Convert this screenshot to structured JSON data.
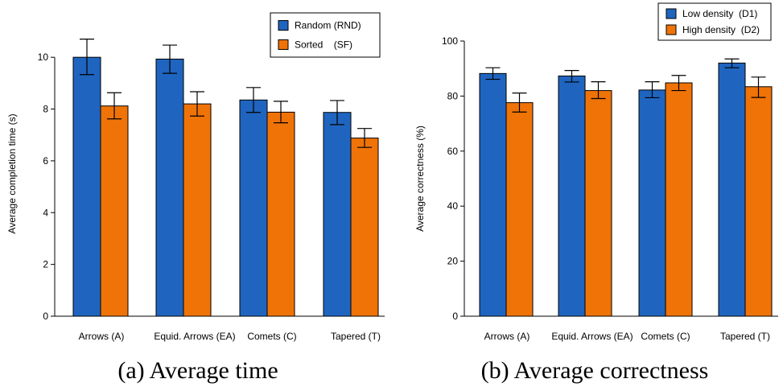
{
  "chart_data": [
    {
      "type": "bar",
      "caption": "(a)  Average time",
      "ylabel": "Average completion time (s)",
      "xlabel": "",
      "categories": [
        "Arrows (A)",
        "Equid. Arrows (EA)",
        "Comets (C)",
        "Tapered (T)"
      ],
      "ylim": [
        0,
        11
      ],
      "yticks": [
        0,
        2,
        4,
        6,
        8,
        10
      ],
      "legend_position": "top-right",
      "series": [
        {
          "name": "Random (RND)",
          "color": "#1f65c0",
          "values": [
            10.0,
            9.93,
            8.35,
            7.87
          ],
          "err_low": [
            9.33,
            9.38,
            7.87,
            7.4
          ],
          "err_high": [
            10.7,
            10.47,
            8.83,
            8.33
          ]
        },
        {
          "name": "Sorted    (SF)",
          "color": "#f07308",
          "values": [
            8.12,
            8.2,
            7.88,
            6.88
          ],
          "err_low": [
            7.62,
            7.73,
            7.47,
            6.52
          ],
          "err_high": [
            8.63,
            8.67,
            8.3,
            7.25
          ]
        }
      ]
    },
    {
      "type": "bar",
      "caption": "(b)  Average correctness",
      "ylabel": "Average correctness (%)",
      "xlabel": "",
      "categories": [
        "Arrows (A)",
        "Equid. Arrows (EA)",
        "Comets (C)",
        "Tapered (T)"
      ],
      "ylim": [
        0,
        100
      ],
      "yticks": [
        0,
        20,
        40,
        60,
        80,
        100
      ],
      "legend_position": "top-right",
      "series": [
        {
          "name": "Low density  (D1)",
          "color": "#1f65c0",
          "values": [
            88.2,
            87.3,
            82.2,
            92.0
          ],
          "err_low": [
            86.1,
            85.1,
            79.4,
            90.3
          ],
          "err_high": [
            90.3,
            89.3,
            85.2,
            93.5
          ]
        },
        {
          "name": "High density  (D2)",
          "color": "#f07308",
          "values": [
            77.6,
            82.0,
            84.8,
            83.4
          ],
          "err_low": [
            74.2,
            79.1,
            82.0,
            79.5
          ],
          "err_high": [
            81.1,
            85.2,
            87.5,
            86.9
          ]
        }
      ]
    }
  ]
}
